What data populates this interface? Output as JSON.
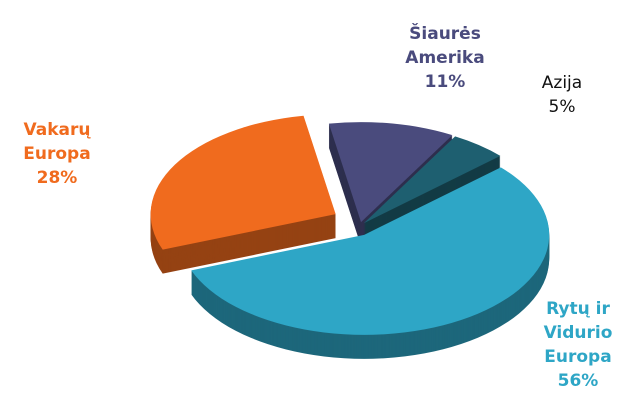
{
  "chart_data": {
    "type": "pie3d",
    "categories": [
      "Šiaurės Amerika",
      "Azija",
      "Rytų ir Vidurio Europa",
      "Vakarų Europa"
    ],
    "values": [
      11,
      5,
      56,
      28
    ],
    "value_labels": [
      "11%",
      "5%",
      "56%",
      "28%"
    ],
    "colors": [
      "#4a4b7d",
      "#1e5f70",
      "#2ea6c6",
      "#f06b1e"
    ],
    "label_colors": [
      "#4a4b7d",
      "#111111",
      "#2ea6c6",
      "#f06b1e"
    ]
  }
}
